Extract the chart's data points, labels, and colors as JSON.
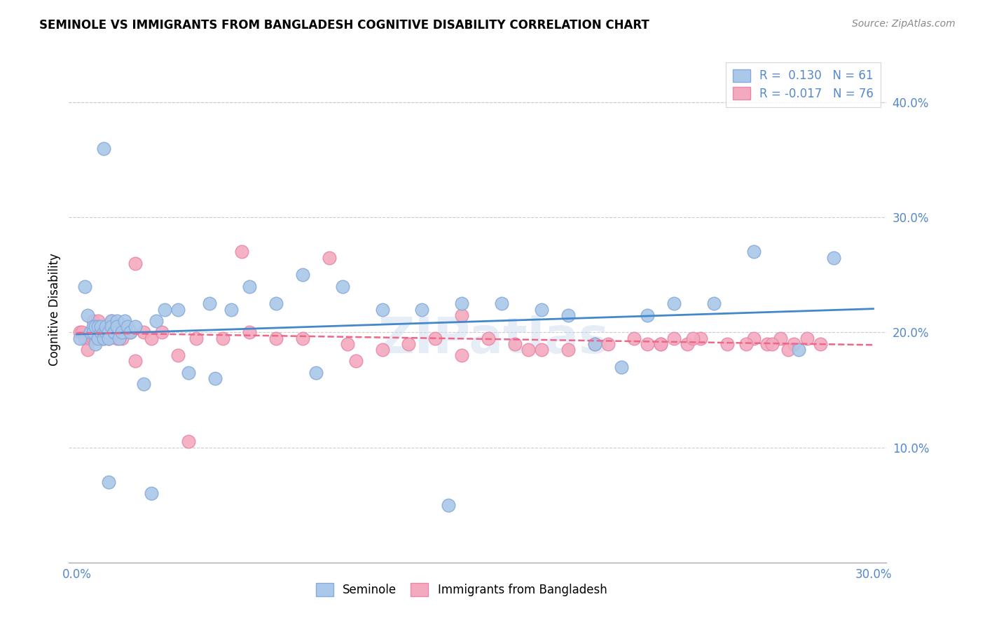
{
  "title": "SEMINOLE VS IMMIGRANTS FROM BANGLADESH COGNITIVE DISABILITY CORRELATION CHART",
  "source": "Source: ZipAtlas.com",
  "ylabel": "Cognitive Disability",
  "xlim": [
    -0.003,
    0.305
  ],
  "ylim": [
    0.0,
    0.44
  ],
  "xticks": [
    0.0,
    0.05,
    0.1,
    0.15,
    0.2,
    0.25,
    0.3
  ],
  "yticks": [
    0.1,
    0.2,
    0.3,
    0.4
  ],
  "grid_color": "#cccccc",
  "background_color": "#ffffff",
  "seminole_color": "#aac8e8",
  "bangladesh_color": "#f4aabe",
  "seminole_edge_color": "#88aadd",
  "bangladesh_edge_color": "#e888aa",
  "trend_blue": "#4488cc",
  "trend_pink": "#ee6688",
  "legend_r1": "R =  0.130",
  "legend_n1": "N = 61",
  "legend_r2": "R = -0.017",
  "legend_n2": "N = 76",
  "label1": "Seminole",
  "label2": "Immigrants from Bangladesh",
  "watermark": "ZIPatlas",
  "tick_color": "#5588cc",
  "seminole_x": [
    0.001,
    0.003,
    0.004,
    0.005,
    0.006,
    0.006,
    0.007,
    0.007,
    0.008,
    0.008,
    0.009,
    0.009,
    0.01,
    0.01,
    0.011,
    0.011,
    0.012,
    0.012,
    0.013,
    0.013,
    0.014,
    0.014,
    0.015,
    0.015,
    0.016,
    0.017,
    0.018,
    0.019,
    0.02,
    0.022,
    0.025,
    0.028,
    0.03,
    0.033,
    0.038,
    0.042,
    0.05,
    0.058,
    0.065,
    0.075,
    0.085,
    0.1,
    0.115,
    0.13,
    0.145,
    0.01,
    0.012,
    0.052,
    0.09,
    0.14,
    0.16,
    0.175,
    0.185,
    0.195,
    0.205,
    0.215,
    0.225,
    0.24,
    0.255,
    0.272,
    0.285
  ],
  "seminole_y": [
    0.195,
    0.24,
    0.215,
    0.2,
    0.205,
    0.2,
    0.19,
    0.205,
    0.205,
    0.195,
    0.2,
    0.205,
    0.2,
    0.195,
    0.2,
    0.205,
    0.2,
    0.195,
    0.21,
    0.205,
    0.2,
    0.2,
    0.21,
    0.205,
    0.195,
    0.2,
    0.21,
    0.205,
    0.2,
    0.205,
    0.155,
    0.06,
    0.21,
    0.22,
    0.22,
    0.165,
    0.225,
    0.22,
    0.24,
    0.225,
    0.25,
    0.24,
    0.22,
    0.22,
    0.225,
    0.36,
    0.07,
    0.16,
    0.165,
    0.05,
    0.225,
    0.22,
    0.215,
    0.19,
    0.17,
    0.215,
    0.225,
    0.225,
    0.27,
    0.185,
    0.265
  ],
  "bangladesh_x": [
    0.001,
    0.002,
    0.003,
    0.004,
    0.005,
    0.005,
    0.006,
    0.006,
    0.007,
    0.007,
    0.008,
    0.008,
    0.009,
    0.009,
    0.01,
    0.01,
    0.011,
    0.011,
    0.012,
    0.012,
    0.013,
    0.013,
    0.014,
    0.014,
    0.015,
    0.015,
    0.016,
    0.017,
    0.018,
    0.02,
    0.022,
    0.025,
    0.028,
    0.032,
    0.038,
    0.045,
    0.055,
    0.065,
    0.075,
    0.085,
    0.095,
    0.105,
    0.115,
    0.125,
    0.135,
    0.145,
    0.155,
    0.165,
    0.175,
    0.185,
    0.195,
    0.2,
    0.21,
    0.215,
    0.22,
    0.225,
    0.23,
    0.235,
    0.245,
    0.255,
    0.26,
    0.265,
    0.27,
    0.275,
    0.28,
    0.022,
    0.042,
    0.062,
    0.102,
    0.145,
    0.17,
    0.22,
    0.232,
    0.252,
    0.262,
    0.268
  ],
  "bangladesh_y": [
    0.2,
    0.2,
    0.195,
    0.185,
    0.195,
    0.2,
    0.195,
    0.21,
    0.2,
    0.195,
    0.2,
    0.21,
    0.2,
    0.195,
    0.2,
    0.195,
    0.205,
    0.2,
    0.2,
    0.195,
    0.2,
    0.21,
    0.2,
    0.205,
    0.2,
    0.195,
    0.2,
    0.195,
    0.2,
    0.2,
    0.175,
    0.2,
    0.195,
    0.2,
    0.18,
    0.195,
    0.195,
    0.2,
    0.195,
    0.195,
    0.265,
    0.175,
    0.185,
    0.19,
    0.195,
    0.215,
    0.195,
    0.19,
    0.185,
    0.185,
    0.19,
    0.19,
    0.195,
    0.19,
    0.19,
    0.195,
    0.19,
    0.195,
    0.19,
    0.195,
    0.19,
    0.195,
    0.19,
    0.195,
    0.19,
    0.26,
    0.105,
    0.27,
    0.19,
    0.18,
    0.185,
    0.19,
    0.195,
    0.19,
    0.19,
    0.185
  ]
}
